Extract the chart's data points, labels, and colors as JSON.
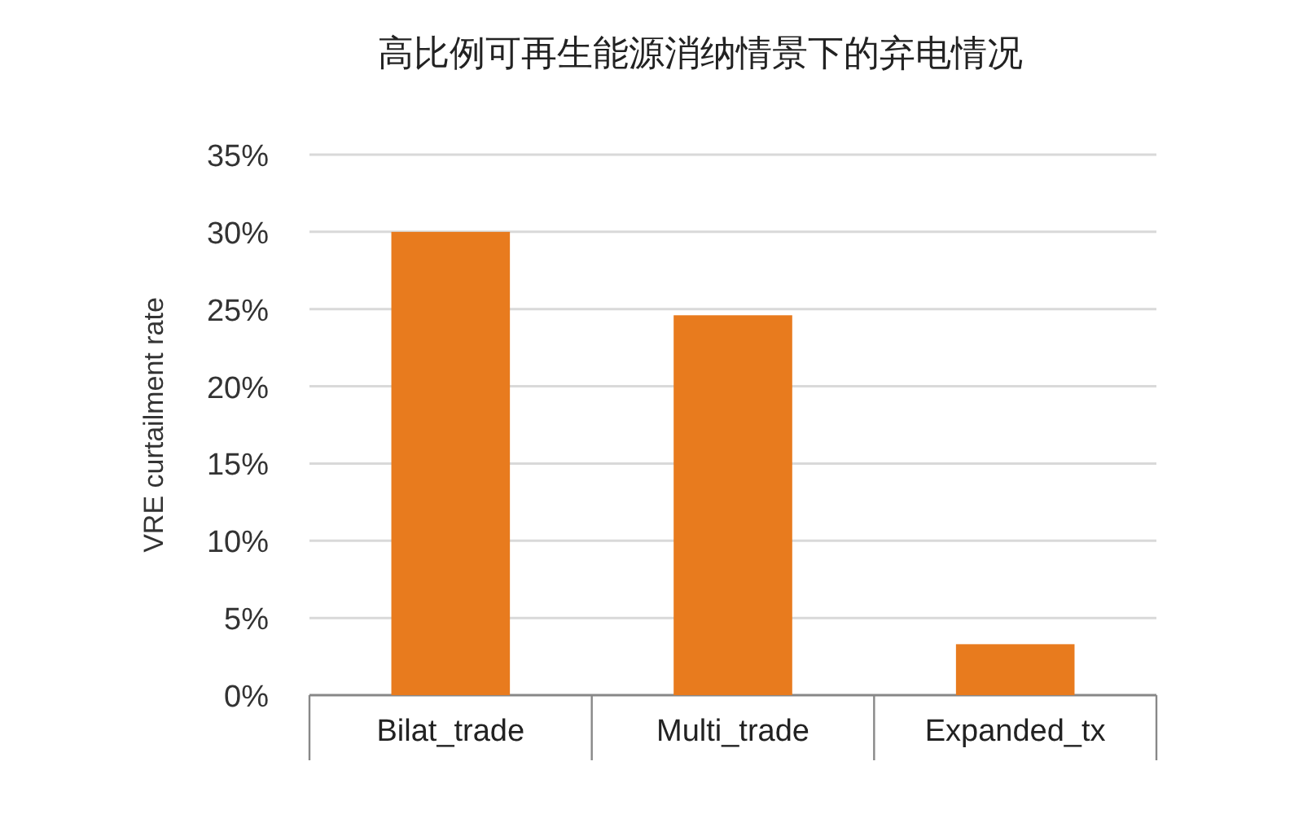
{
  "chart_data": {
    "type": "bar",
    "title": "高比例可再生能源消纳情景下的弃电情况",
    "ylabel": "VRE curtailment rate",
    "categories": [
      "Bilat_trade",
      "Multi_trade",
      "Expanded_tx"
    ],
    "values": [
      30,
      24.6,
      3.3
    ],
    "color": "#e87b1e",
    "ylim": [
      0,
      35
    ],
    "yticks": [
      {
        "value": 0,
        "label": "0%"
      },
      {
        "value": 5,
        "label": "5%"
      },
      {
        "value": 10,
        "label": "10%"
      },
      {
        "value": 15,
        "label": "15%"
      },
      {
        "value": 20,
        "label": "20%"
      },
      {
        "value": 25,
        "label": "25%"
      },
      {
        "value": 30,
        "label": "30%"
      },
      {
        "value": 35,
        "label": "35%"
      }
    ],
    "grid": "y"
  }
}
